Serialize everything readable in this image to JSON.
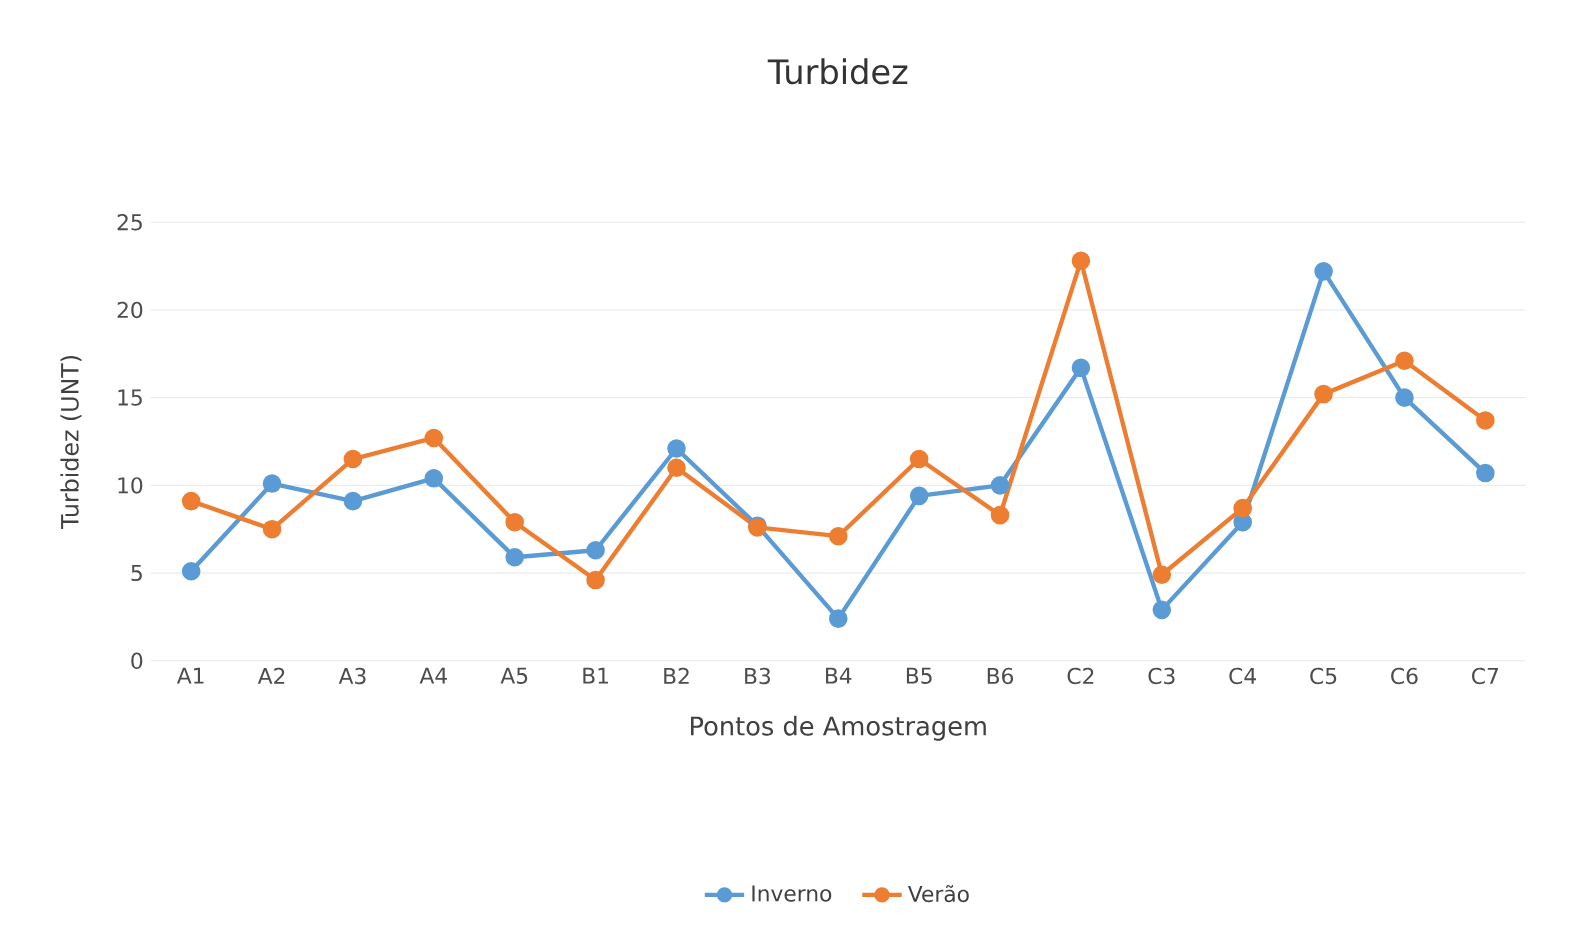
{
  "chart_data": {
    "type": "line",
    "title": "Turbidez",
    "xlabel": "Pontos de Amostragem",
    "ylabel": "Turbidez (UNT)",
    "categories": [
      "A1",
      "A2",
      "A3",
      "A4",
      "A5",
      "B1",
      "B2",
      "B3",
      "B4",
      "B5",
      "B6",
      "C2",
      "C3",
      "C4",
      "C5",
      "C6",
      "C7"
    ],
    "series": [
      {
        "name": "Inverno",
        "color": "#5b9bd5",
        "values": [
          5.1,
          10.1,
          9.1,
          10.4,
          5.9,
          6.3,
          12.1,
          7.7,
          2.4,
          9.4,
          10.0,
          16.7,
          2.9,
          7.9,
          22.2,
          15.0,
          10.7
        ]
      },
      {
        "name": "Verão",
        "color": "#ed7d31",
        "values": [
          9.1,
          7.5,
          11.5,
          12.7,
          7.9,
          4.6,
          11.0,
          7.6,
          7.1,
          11.5,
          8.3,
          22.8,
          4.9,
          8.7,
          15.2,
          17.1,
          13.7
        ]
      }
    ],
    "ylim": [
      0,
      25
    ],
    "yticks": [
      0,
      5,
      10,
      15,
      20,
      25
    ],
    "grid": "y",
    "legend": "bottom",
    "marker": "circle",
    "line_style": "solid"
  }
}
